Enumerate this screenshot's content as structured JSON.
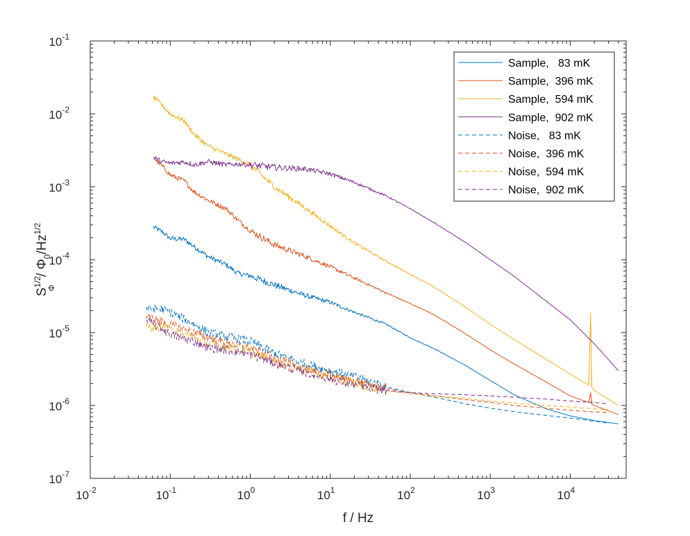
{
  "chart_data": {
    "type": "line",
    "xscale": "log",
    "yscale": "log",
    "xlim": [
      0.01,
      50000
    ],
    "ylim": [
      1e-07,
      0.1
    ],
    "xlabel": "f / Hz",
    "ylabel": {
      "s": "S",
      "sup": "1/2",
      "sub": "Φ",
      "mid": " / Φ",
      "sub2": "0",
      "tail": "/Hz",
      "sup2": "1/2"
    },
    "x_ticks": [
      {
        "value": 0.01,
        "base": "10",
        "exp": "-2"
      },
      {
        "value": 0.1,
        "base": "10",
        "exp": "-1"
      },
      {
        "value": 1,
        "base": "10",
        "exp": "0"
      },
      {
        "value": 10,
        "base": "10",
        "exp": "1"
      },
      {
        "value": 100,
        "base": "10",
        "exp": "2"
      },
      {
        "value": 1000,
        "base": "10",
        "exp": "3"
      },
      {
        "value": 10000,
        "base": "10",
        "exp": "4"
      }
    ],
    "y_ticks": [
      {
        "value": 1e-07,
        "base": "10",
        "exp": "-7"
      },
      {
        "value": 1e-06,
        "base": "10",
        "exp": "-6"
      },
      {
        "value": 1e-05,
        "base": "10",
        "exp": "-5"
      },
      {
        "value": 0.0001,
        "base": "10",
        "exp": "-4"
      },
      {
        "value": 0.001,
        "base": "10",
        "exp": "-3"
      },
      {
        "value": 0.01,
        "base": "10",
        "exp": "-2"
      },
      {
        "value": 0.1,
        "base": "10",
        "exp": "-1"
      }
    ],
    "legend_position": "top-right",
    "series": [
      {
        "name": "Sample,   83 mK",
        "color": "#0072BD",
        "style": "solid",
        "x": [
          0.062,
          0.08,
          0.1,
          0.15,
          0.2,
          0.3,
          0.5,
          0.7,
          1,
          2,
          5,
          10,
          20,
          50,
          100,
          200,
          500,
          1000,
          2000,
          5000,
          10000,
          20000,
          40000
        ],
        "y": [
          0.00028,
          0.00024,
          0.000195,
          0.00019,
          0.00015,
          0.00011,
          8.5e-05,
          6.5e-05,
          6e-05,
          4.5e-05,
          3.2e-05,
          2.6e-05,
          1.9e-05,
          1.3e-05,
          8.5e-06,
          6e-06,
          3.5e-06,
          2.2e-06,
          1.4e-06,
          9e-07,
          7.2e-07,
          6.2e-07,
          5.6e-07
        ]
      },
      {
        "name": "Sample,  396 mK",
        "color": "#D95319",
        "style": "solid",
        "x": [
          0.062,
          0.08,
          0.1,
          0.15,
          0.2,
          0.3,
          0.5,
          0.7,
          1,
          2,
          5,
          10,
          20,
          50,
          100,
          200,
          500,
          1000,
          2000,
          5000,
          10000,
          17000,
          18000,
          18500,
          20000,
          40000
        ],
        "y": [
          0.0025,
          0.0019,
          0.00145,
          0.0012,
          0.00085,
          0.00065,
          0.0005,
          0.00035,
          0.00025,
          0.00016,
          0.00011,
          8e-05,
          5.6e-05,
          3.5e-05,
          2.5e-05,
          1.75e-05,
          9.5e-06,
          5.8e-06,
          3.7e-06,
          2.1e-06,
          1.35e-06,
          1.1e-06,
          1.5e-06,
          1.05e-06,
          1e-06,
          7.5e-07
        ]
      },
      {
        "name": "Sample,  594 mK",
        "color": "#EDB120",
        "style": "solid",
        "x": [
          0.062,
          0.08,
          0.1,
          0.15,
          0.2,
          0.3,
          0.5,
          0.7,
          1,
          2,
          5,
          10,
          20,
          50,
          100,
          200,
          500,
          1000,
          2000,
          5000,
          10000,
          17000,
          18000,
          18500,
          20000,
          40000
        ],
        "y": [
          0.017,
          0.013,
          0.01,
          0.008,
          0.0052,
          0.0036,
          0.0028,
          0.0024,
          0.002,
          0.001,
          0.0005,
          0.00029,
          0.00017,
          9.5e-05,
          6.3e-05,
          4.2e-05,
          2.2e-05,
          1.3e-05,
          8e-06,
          4.3e-06,
          2.7e-06,
          1.9e-06,
          1.85e-05,
          1.8e-06,
          1.6e-06,
          1e-06
        ]
      },
      {
        "name": "Sample,  902 mK",
        "color": "#7E2F8E",
        "style": "solid",
        "x": [
          0.062,
          0.08,
          0.1,
          0.15,
          0.2,
          0.3,
          0.5,
          0.7,
          1,
          2,
          5,
          10,
          20,
          50,
          100,
          200,
          500,
          1000,
          2000,
          5000,
          10000,
          20000,
          40000
        ],
        "y": [
          0.0025,
          0.0022,
          0.0021,
          0.0022,
          0.002,
          0.0022,
          0.002,
          0.00205,
          0.002,
          0.00185,
          0.00175,
          0.0015,
          0.00115,
          0.00075,
          0.0005,
          0.00032,
          0.00017,
          0.0001,
          5.9e-05,
          2.7e-05,
          1.5e-05,
          7e-06,
          3e-06
        ]
      },
      {
        "name": "Noise,   83 mK",
        "color": "#0072BD",
        "style": "dashed",
        "x": [
          0.05,
          0.08,
          0.1,
          0.2,
          0.3,
          0.5,
          1,
          2,
          5,
          10,
          20,
          50,
          100,
          200,
          500,
          1000,
          2000,
          5000,
          10000,
          20000,
          30000
        ],
        "y": [
          2.1e-05,
          2.1e-05,
          1.9e-05,
          1.3e-05,
          1e-05,
          8.8e-06,
          7.6e-06,
          5.2e-06,
          3.7e-06,
          3e-06,
          2.5e-06,
          1.8e-06,
          1.5e-06,
          1.3e-06,
          1.05e-06,
          9.2e-07,
          8.2e-07,
          7.3e-07,
          6.7e-07,
          6.1e-07,
          5.7e-07
        ]
      },
      {
        "name": "Noise,  396 mK",
        "color": "#D95319",
        "style": "dashed",
        "x": [
          0.05,
          0.08,
          0.1,
          0.2,
          0.3,
          0.5,
          1,
          2,
          5,
          10,
          20,
          50,
          100,
          200,
          500,
          1000,
          2000,
          5000,
          10000,
          20000,
          30000
        ],
        "y": [
          1.7e-05,
          1.4e-05,
          1.3e-05,
          1e-05,
          8.5e-06,
          7.2e-06,
          6.2e-06,
          4.4e-06,
          3.2e-06,
          2.6e-06,
          2.2e-06,
          1.7e-06,
          1.5e-06,
          1.35e-06,
          1.2e-06,
          1.1e-06,
          1e-06,
          9.2e-07,
          8.6e-07,
          8.2e-07,
          7.9e-07
        ]
      },
      {
        "name": "Noise,  594 mK",
        "color": "#EDB120",
        "style": "dashed",
        "x": [
          0.05,
          0.08,
          0.1,
          0.2,
          0.3,
          0.5,
          1,
          2,
          5,
          10,
          20,
          50,
          100,
          200,
          500,
          1000,
          2000,
          5000,
          10000,
          20000,
          30000
        ],
        "y": [
          1.2e-05,
          1.2e-05,
          1.1e-05,
          8.5e-06,
          7e-06,
          6.3e-06,
          5.5e-06,
          4e-06,
          3e-06,
          2.4e-06,
          2e-06,
          1.6e-06,
          1.45e-06,
          1.35e-06,
          1.25e-06,
          1.15e-06,
          1.08e-06,
          1e-06,
          9.5e-07,
          9e-07,
          8.7e-07
        ]
      },
      {
        "name": "Noise,  902 mK",
        "color": "#7E2F8E",
        "style": "dashed",
        "x": [
          0.05,
          0.08,
          0.1,
          0.2,
          0.3,
          0.5,
          1,
          2,
          5,
          10,
          20,
          50,
          100,
          200,
          500,
          1000,
          2000,
          5000,
          10000,
          20000,
          30000
        ],
        "y": [
          1.5e-05,
          1.1e-05,
          9.5e-06,
          7.5e-06,
          6.2e-06,
          5.8e-06,
          5e-06,
          3.8e-06,
          2.8e-06,
          2.3e-06,
          1.9e-06,
          1.6e-06,
          1.5e-06,
          1.45e-06,
          1.4e-06,
          1.35e-06,
          1.3e-06,
          1.22e-06,
          1.15e-06,
          1.1e-06,
          1.05e-06
        ]
      }
    ]
  }
}
